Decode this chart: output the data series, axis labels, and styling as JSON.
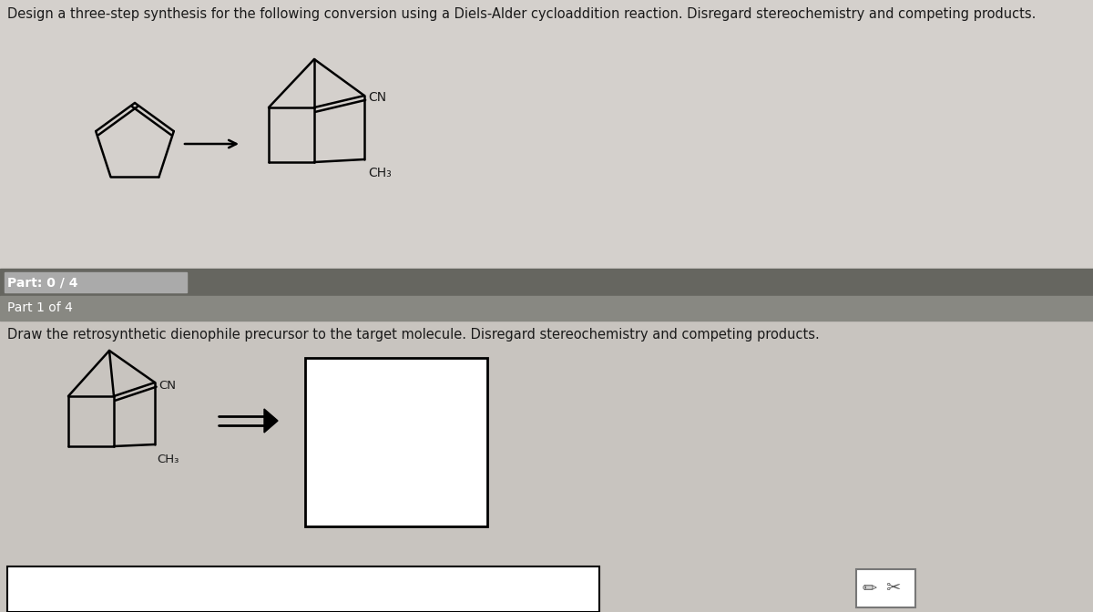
{
  "title_text": "Design a three-step synthesis for the following conversion using a Diels-Alder cycloaddition reaction. Disregard stereochemistry and competing products.",
  "bg_color": "#d4d0cc",
  "bg_top_color": "#d4d0cc",
  "bg_bottom_color": "#c8c4bf",
  "part_bar_color": "#666660",
  "part_progress_color": "#aaaaaa",
  "part1_bar_color": "#888882",
  "white": "#ffffff",
  "black": "#1a1a1a",
  "part_label": "Part: 0 / 4",
  "part1_label": "Part 1 of 4",
  "instruction_text": "Draw the retrosynthetic dienophile precursor to the target molecule. Disregard stereochemistry and competing products.",
  "title_fontsize": 10.5,
  "label_fontsize": 10,
  "instruction_fontsize": 10.5
}
